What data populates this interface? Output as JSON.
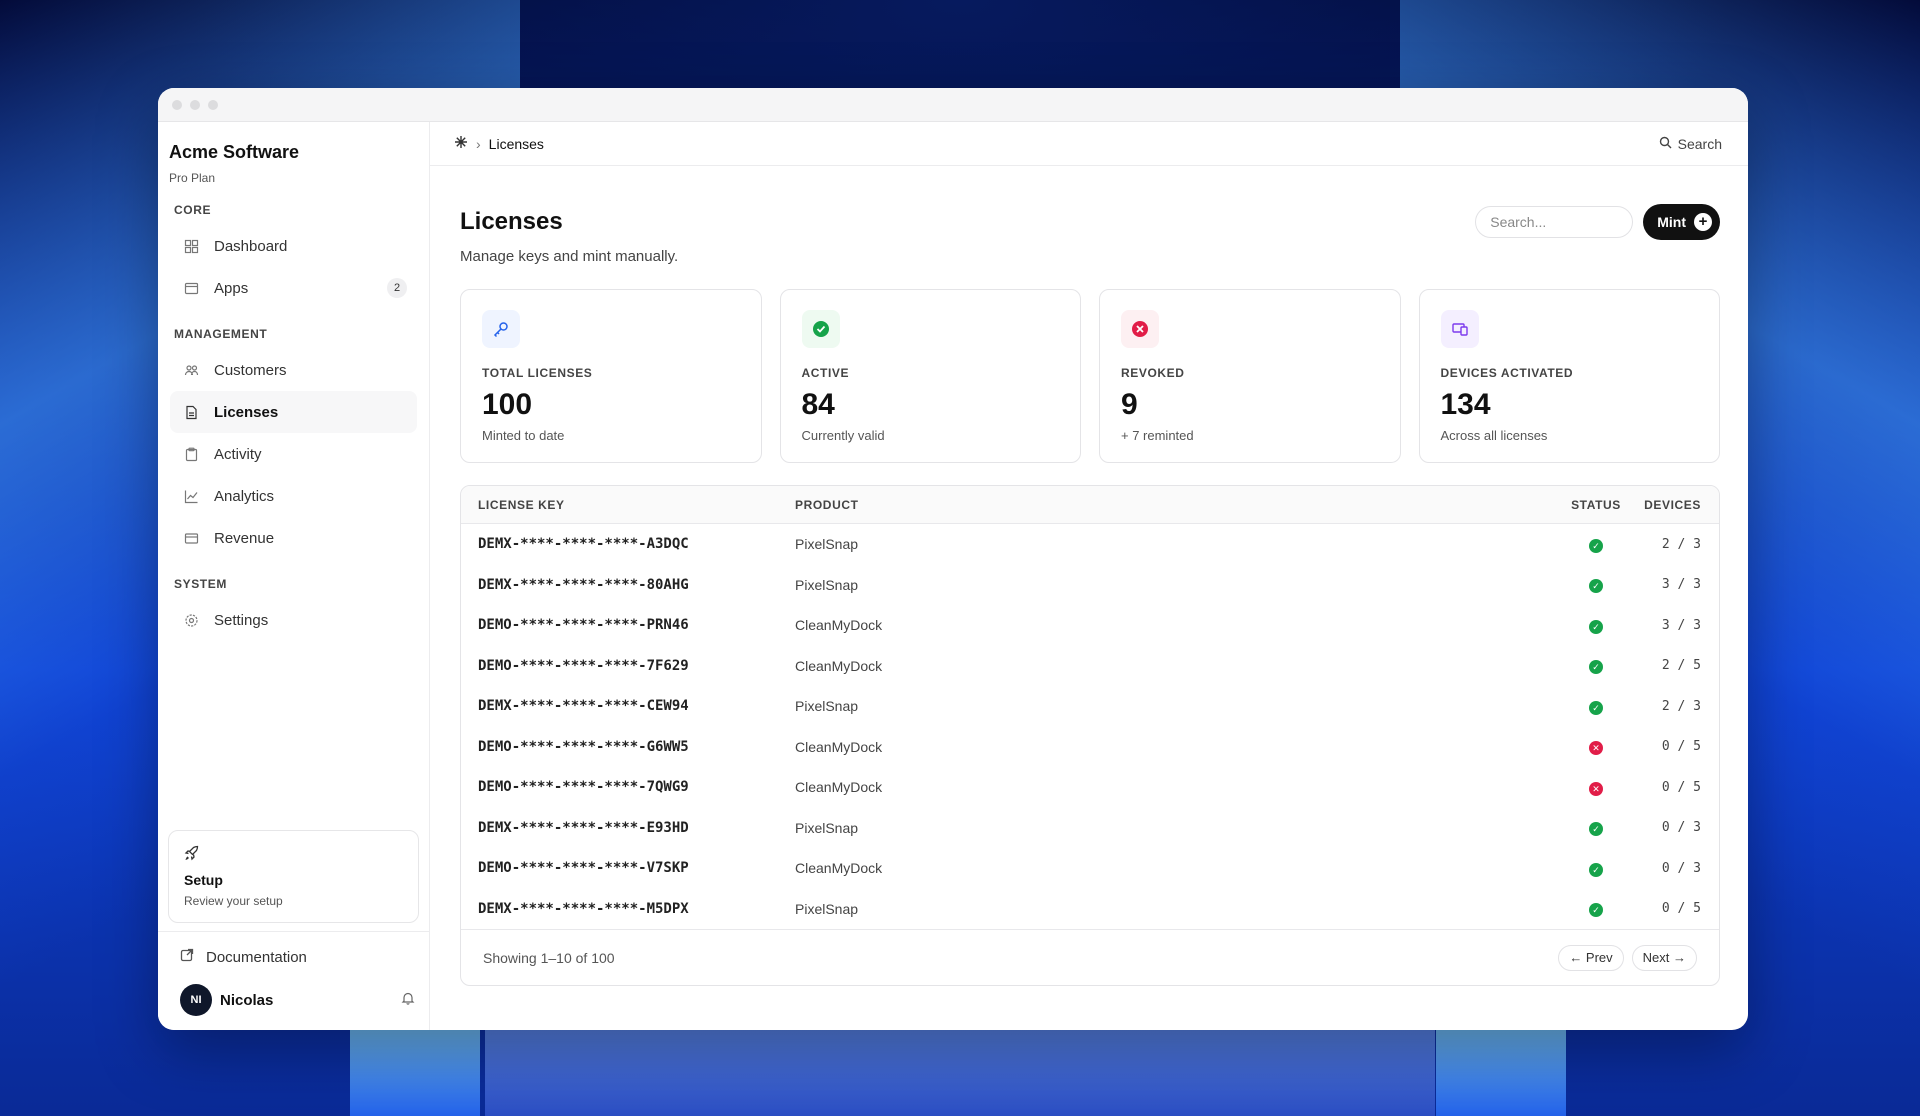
{
  "sidebar": {
    "brand": "Acme Software",
    "plan": "Pro Plan",
    "sections": [
      {
        "title": "CORE",
        "items": [
          {
            "label": "Dashboard",
            "icon": "grid-icon"
          },
          {
            "label": "Apps",
            "icon": "window-icon",
            "badge": "2"
          }
        ]
      },
      {
        "title": "MANAGEMENT",
        "items": [
          {
            "label": "Customers",
            "icon": "users-icon"
          },
          {
            "label": "Licenses",
            "icon": "document-icon",
            "active": true
          },
          {
            "label": "Activity",
            "icon": "clipboard-icon"
          },
          {
            "label": "Analytics",
            "icon": "chart-icon"
          },
          {
            "label": "Revenue",
            "icon": "card-icon"
          }
        ]
      },
      {
        "title": "SYSTEM",
        "items": [
          {
            "label": "Settings",
            "icon": "gear-icon"
          }
        ]
      }
    ],
    "setup": {
      "title": "Setup",
      "subtitle": "Review your setup"
    },
    "documentation": "Documentation",
    "user": {
      "initials": "NI",
      "name": "Nicolas"
    }
  },
  "topbar": {
    "crumb": "Licenses",
    "search": "Search"
  },
  "page": {
    "title": "Licenses",
    "subtitle": "Manage keys and mint manually.",
    "search_placeholder": "Search...",
    "mint_label": "Mint"
  },
  "stats": [
    {
      "label": "TOTAL LICENSES",
      "value": "100",
      "sub": "Minted to date",
      "icon": "key-icon",
      "color": "#2563eb",
      "bg": "#eff4ff"
    },
    {
      "label": "ACTIVE",
      "value": "84",
      "sub": "Currently valid",
      "icon": "check-circle-icon",
      "color": "#16a34a",
      "bg": "#eefaf1"
    },
    {
      "label": "REVOKED",
      "value": "9",
      "sub": "+ 7 reminted",
      "icon": "x-circle-icon",
      "color": "#e11d48",
      "bg": "#fdf0f2"
    },
    {
      "label": "DEVICES ACTIVATED",
      "value": "134",
      "sub": "Across all licenses",
      "icon": "devices-icon",
      "color": "#7c3aed",
      "bg": "#f4efff"
    }
  ],
  "table": {
    "headers": {
      "key": "LICENSE KEY",
      "product": "PRODUCT",
      "status": "STATUS",
      "devices": "DEVICES"
    },
    "rows": [
      {
        "key": "DEMX-****-****-****-A3DQC",
        "product": "PixelSnap",
        "status": "active",
        "devices": "2 / 3"
      },
      {
        "key": "DEMX-****-****-****-80AHG",
        "product": "PixelSnap",
        "status": "active",
        "devices": "3 / 3"
      },
      {
        "key": "DEMO-****-****-****-PRN46",
        "product": "CleanMyDock",
        "status": "active",
        "devices": "3 / 3"
      },
      {
        "key": "DEMO-****-****-****-7F629",
        "product": "CleanMyDock",
        "status": "active",
        "devices": "2 / 5"
      },
      {
        "key": "DEMX-****-****-****-CEW94",
        "product": "PixelSnap",
        "status": "active",
        "devices": "2 / 3"
      },
      {
        "key": "DEMO-****-****-****-G6WW5",
        "product": "CleanMyDock",
        "status": "revoked",
        "devices": "0 / 5"
      },
      {
        "key": "DEMO-****-****-****-7QWG9",
        "product": "CleanMyDock",
        "status": "revoked",
        "devices": "0 / 5"
      },
      {
        "key": "DEMX-****-****-****-E93HD",
        "product": "PixelSnap",
        "status": "active",
        "devices": "0 / 3"
      },
      {
        "key": "DEMO-****-****-****-V7SKP",
        "product": "CleanMyDock",
        "status": "active",
        "devices": "0 / 3"
      },
      {
        "key": "DEMX-****-****-****-M5DPX",
        "product": "PixelSnap",
        "status": "active",
        "devices": "0 / 5"
      }
    ],
    "footer": "Showing 1–10 of 100",
    "prev": "← Prev",
    "next": "Next →"
  }
}
